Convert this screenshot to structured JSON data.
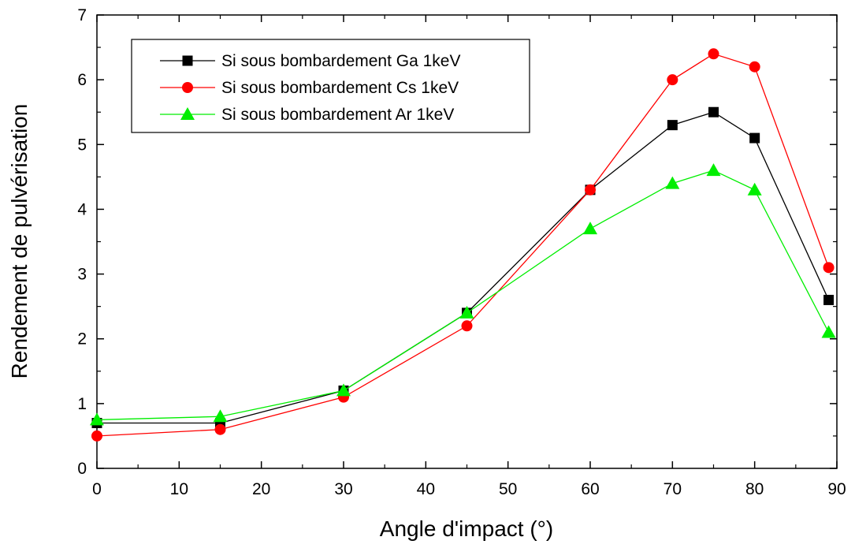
{
  "chart_data": {
    "type": "line",
    "xlabel": "Angle d'impact (°)",
    "ylabel": "Rendement de pulvérisation",
    "xlim": [
      0,
      90
    ],
    "ylim": [
      0,
      7
    ],
    "x_ticks": [
      "0",
      "10",
      "20",
      "30",
      "40",
      "50",
      "60",
      "70",
      "80",
      "90"
    ],
    "y_ticks": [
      "0",
      "1",
      "2",
      "3",
      "4",
      "5",
      "6",
      "7"
    ],
    "grid": false,
    "legend_position": "top-left",
    "series": [
      {
        "name": "Si sous bombardement Ga 1keV",
        "marker": "square",
        "color": "#000000",
        "x": [
          0,
          15,
          30,
          45,
          60,
          70,
          75,
          80,
          89
        ],
        "y": [
          0.7,
          0.7,
          1.2,
          2.4,
          4.3,
          5.3,
          5.5,
          5.1,
          2.6
        ]
      },
      {
        "name": "Si sous bombardement Cs 1keV",
        "marker": "circle",
        "color": "#ff0000",
        "x": [
          0,
          15,
          30,
          45,
          60,
          70,
          75,
          80,
          89
        ],
        "y": [
          0.5,
          0.6,
          1.1,
          2.2,
          4.3,
          6.0,
          6.4,
          6.2,
          3.1
        ]
      },
      {
        "name": "Si sous bombardement Ar 1keV",
        "marker": "triangle",
        "color": "#00ee00",
        "x": [
          0,
          15,
          30,
          45,
          60,
          70,
          75,
          80,
          89
        ],
        "y": [
          0.75,
          0.8,
          1.2,
          2.4,
          3.7,
          4.4,
          4.6,
          4.3,
          2.1
        ]
      }
    ]
  }
}
